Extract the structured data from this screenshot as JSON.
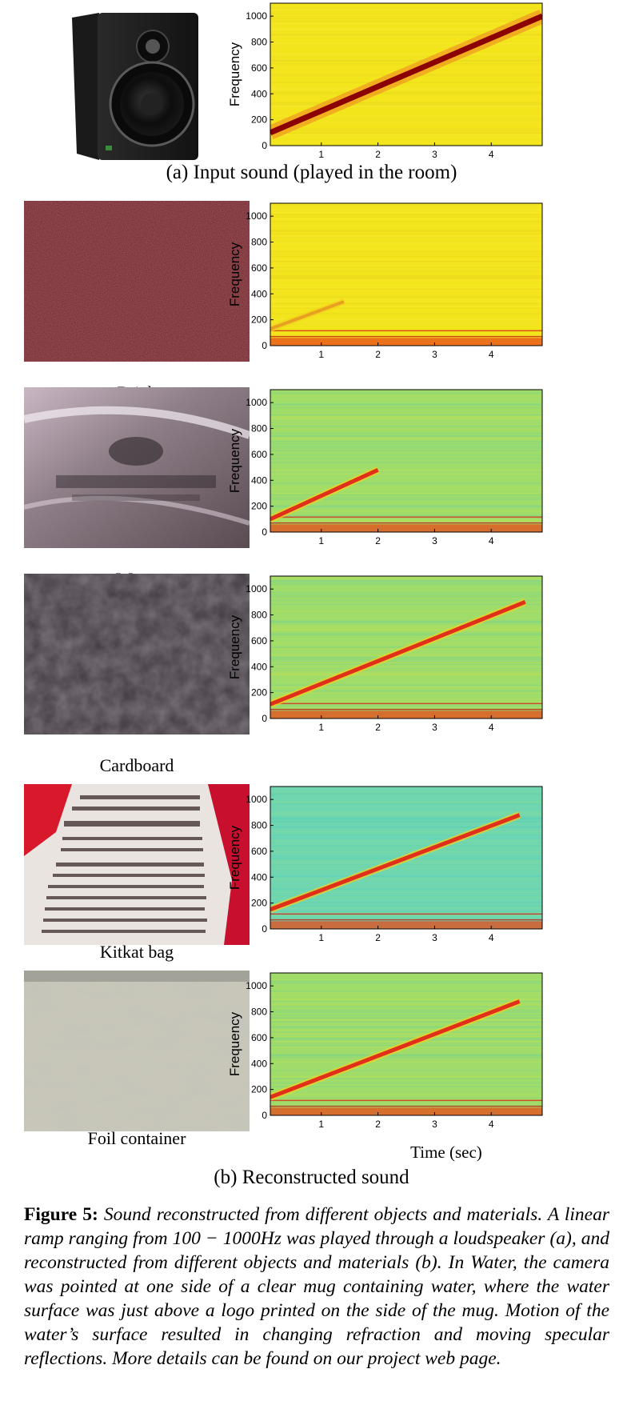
{
  "figure": {
    "label": "Figure 5:",
    "caption": "Sound reconstructed from different objects and materials. A linear ramp ranging from 100 − 1000Hz was played through a loudspeaker (a), and reconstructed from different objects and materials (b). In Water, the camera was pointed at one side of a clear mug containing water, where the water surface was just above a logo printed on the side of the mug. Motion of the water’s surface resulted in changing refraction and moving specular reflections. More details can be found on our project web page."
  },
  "panel_a": {
    "caption": "(a) Input sound (played in the room)"
  },
  "panel_b": {
    "caption": "(b) Reconstructed sound",
    "xlabel": "Time (sec)"
  },
  "materials": [
    {
      "label": "Brick"
    },
    {
      "label": "Water"
    },
    {
      "label": "Cardboard"
    },
    {
      "label": "Kitkat bag"
    },
    {
      "label": "Foil container"
    }
  ],
  "colors": {
    "dark_red": "#8b0000",
    "red": "#d71f1a",
    "yellow": "#f4e61e",
    "cyan_green": "#6fd6a4"
  },
  "chart_data": [
    {
      "type": "heatmap",
      "id": "input",
      "ylabel": "Frequency",
      "xticks": [
        1,
        2,
        3,
        4
      ],
      "yticks": [
        0,
        200,
        400,
        600,
        800,
        1000
      ],
      "xlim": [
        0.1,
        4.9
      ],
      "ylim": [
        0,
        1100
      ],
      "background": "yellow",
      "ramp": {
        "from": [
          0.1,
          100
        ],
        "to": [
          4.9,
          1000
        ],
        "strength": "strong"
      }
    },
    {
      "type": "heatmap",
      "id": "brick",
      "ylabel": "Frequency",
      "xticks": [
        1,
        2,
        3,
        4
      ],
      "yticks": [
        0,
        200,
        400,
        600,
        800,
        1000
      ],
      "xlim": [
        0.1,
        4.9
      ],
      "ylim": [
        0,
        1100
      ],
      "background": "yellow",
      "ramp": {
        "from": [
          0.1,
          130
        ],
        "to": [
          1.4,
          340
        ],
        "strength": "faint"
      }
    },
    {
      "type": "heatmap",
      "id": "water",
      "ylabel": "Frequency",
      "xticks": [
        1,
        2,
        3,
        4
      ],
      "yticks": [
        0,
        200,
        400,
        600,
        800,
        1000
      ],
      "xlim": [
        0.1,
        4.9
      ],
      "ylim": [
        0,
        1100
      ],
      "background": "green",
      "ramp": {
        "from": [
          0.1,
          100
        ],
        "to": [
          2.0,
          480
        ],
        "strength": "medium"
      }
    },
    {
      "type": "heatmap",
      "id": "cardboard",
      "ylabel": "Frequency",
      "xticks": [
        1,
        2,
        3,
        4
      ],
      "yticks": [
        0,
        200,
        400,
        600,
        800,
        1000
      ],
      "xlim": [
        0.1,
        4.9
      ],
      "ylim": [
        0,
        1100
      ],
      "background": "green",
      "ramp": {
        "from": [
          0.1,
          110
        ],
        "to": [
          4.6,
          900
        ],
        "strength": "medium"
      }
    },
    {
      "type": "heatmap",
      "id": "kitkat",
      "ylabel": "Frequency",
      "xticks": [
        1,
        2,
        3,
        4
      ],
      "yticks": [
        0,
        200,
        400,
        600,
        800,
        1000
      ],
      "xlim": [
        0.1,
        4.9
      ],
      "ylim": [
        0,
        1100
      ],
      "background": "cyan",
      "ramp": {
        "from": [
          0.1,
          150
        ],
        "to": [
          4.5,
          880
        ],
        "strength": "medium"
      }
    },
    {
      "type": "heatmap",
      "id": "foil",
      "ylabel": "Frequency",
      "xticks": [
        1,
        2,
        3,
        4
      ],
      "yticks": [
        0,
        200,
        400,
        600,
        800,
        1000
      ],
      "xlim": [
        0.1,
        4.9
      ],
      "ylim": [
        0,
        1100
      ],
      "background": "green",
      "ramp": {
        "from": [
          0.1,
          140
        ],
        "to": [
          4.5,
          880
        ],
        "strength": "medium"
      }
    }
  ]
}
